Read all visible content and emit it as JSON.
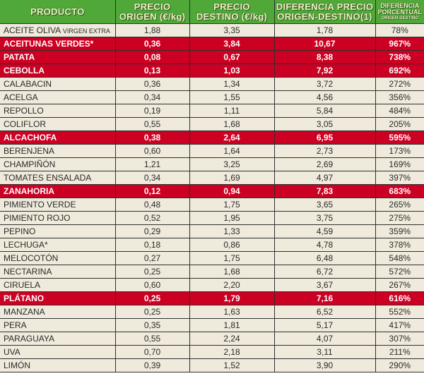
{
  "table": {
    "headers": {
      "producto": "PRODUCTO",
      "precio_origen": [
        "PRECIO",
        "ORIGEN (€/kg)"
      ],
      "precio_destino": [
        "PRECIO",
        "DESTINO (€/kg)"
      ],
      "diferencia": [
        "DIFERENCIA PRECIO",
        "ORIGEN-DESTINO(1)"
      ],
      "porcentual": [
        "DIFERENCIA",
        "PORCENTUAL",
        "ORIGEN-DESTINO"
      ]
    },
    "colors": {
      "header_bg": "#4fa838",
      "header_text": "#f4f0c8",
      "row_bg": "#efeadb",
      "highlight_bg": "#cc0022",
      "highlight_text": "#ffffff"
    },
    "rows": [
      {
        "producto": "ACEITE OLIVA",
        "sub": "VIRGEN EXTRA",
        "origen": "1,88",
        "destino": "3,35",
        "diferencia": "1,78",
        "porcentaje": "78%",
        "highlight": false
      },
      {
        "producto": "ACEITUNAS VERDES*",
        "sub": "",
        "origen": "0,36",
        "destino": "3,84",
        "diferencia": "10,67",
        "porcentaje": "967%",
        "highlight": true
      },
      {
        "producto": "PATATA",
        "sub": "",
        "origen": "0,08",
        "destino": "0,67",
        "diferencia": "8,38",
        "porcentaje": "738%",
        "highlight": true
      },
      {
        "producto": "CEBOLLA",
        "sub": "",
        "origen": "0,13",
        "destino": "1,03",
        "diferencia": "7,92",
        "porcentaje": "692%",
        "highlight": true
      },
      {
        "producto": "CALABACIN",
        "sub": "",
        "origen": "0,36",
        "destino": "1,34",
        "diferencia": "3,72",
        "porcentaje": "272%",
        "highlight": false
      },
      {
        "producto": "ACELGA",
        "sub": "",
        "origen": "0,34",
        "destino": "1,55",
        "diferencia": "4,56",
        "porcentaje": "356%",
        "highlight": false
      },
      {
        "producto": "REPOLLO",
        "sub": "",
        "origen": "0,19",
        "destino": "1,11",
        "diferencia": "5,84",
        "porcentaje": "484%",
        "highlight": false
      },
      {
        "producto": "COLIFLOR",
        "sub": "",
        "origen": "0,55",
        "destino": "1,68",
        "diferencia": "3,05",
        "porcentaje": "205%",
        "highlight": false
      },
      {
        "producto": "ALCACHOFA",
        "sub": "",
        "origen": "0,38",
        "destino": "2,64",
        "diferencia": "6,95",
        "porcentaje": "595%",
        "highlight": true
      },
      {
        "producto": "BERENJENA",
        "sub": "",
        "origen": "0,60",
        "destino": "1,64",
        "diferencia": "2,73",
        "porcentaje": "173%",
        "highlight": false
      },
      {
        "producto": "CHAMPIÑÓN",
        "sub": "",
        "origen": "1,21",
        "destino": "3,25",
        "diferencia": "2,69",
        "porcentaje": "169%",
        "highlight": false
      },
      {
        "producto": "TOMATES ENSALADA",
        "sub": "",
        "origen": "0,34",
        "destino": "1,69",
        "diferencia": "4,97",
        "porcentaje": "397%",
        "highlight": false
      },
      {
        "producto": "ZANAHORIA",
        "sub": "",
        "origen": "0,12",
        "destino": "0,94",
        "diferencia": "7,83",
        "porcentaje": "683%",
        "highlight": true
      },
      {
        "producto": "PIMIENTO VERDE",
        "sub": "",
        "origen": "0,48",
        "destino": "1,75",
        "diferencia": "3,65",
        "porcentaje": "265%",
        "highlight": false
      },
      {
        "producto": "PIMIENTO ROJO",
        "sub": "",
        "origen": "0,52",
        "destino": "1,95",
        "diferencia": "3,75",
        "porcentaje": "275%",
        "highlight": false
      },
      {
        "producto": "PEPINO",
        "sub": "",
        "origen": "0,29",
        "destino": "1,33",
        "diferencia": "4,59",
        "porcentaje": "359%",
        "highlight": false
      },
      {
        "producto": "LECHUGA*",
        "sub": "",
        "origen": "0,18",
        "destino": "0,86",
        "diferencia": "4,78",
        "porcentaje": "378%",
        "highlight": false
      },
      {
        "producto": "MELOCOTÓN",
        "sub": "",
        "origen": "0,27",
        "destino": "1,75",
        "diferencia": "6,48",
        "porcentaje": "548%",
        "highlight": false
      },
      {
        "producto": "NECTARINA",
        "sub": "",
        "origen": "0,25",
        "destino": "1,68",
        "diferencia": "6,72",
        "porcentaje": "572%",
        "highlight": false
      },
      {
        "producto": "CIRUELA",
        "sub": "",
        "origen": "0,60",
        "destino": "2,20",
        "diferencia": "3,67",
        "porcentaje": "267%",
        "highlight": false
      },
      {
        "producto": "PLÁTANO",
        "sub": "",
        "origen": "0,25",
        "destino": "1,79",
        "diferencia": "7,16",
        "porcentaje": "616%",
        "highlight": true
      },
      {
        "producto": "MANZANA",
        "sub": "",
        "origen": "0,25",
        "destino": "1,63",
        "diferencia": "6,52",
        "porcentaje": "552%",
        "highlight": false
      },
      {
        "producto": "PERA",
        "sub": "",
        "origen": "0,35",
        "destino": "1,81",
        "diferencia": "5,17",
        "porcentaje": "417%",
        "highlight": false
      },
      {
        "producto": "PARAGUAYA",
        "sub": "",
        "origen": "0,55",
        "destino": "2,24",
        "diferencia": "4,07",
        "porcentaje": "307%",
        "highlight": false
      },
      {
        "producto": "UVA",
        "sub": "",
        "origen": "0,70",
        "destino": "2,18",
        "diferencia": "3,11",
        "porcentaje": "211%",
        "highlight": false
      },
      {
        "producto": "LIMÓN",
        "sub": "",
        "origen": "0,39",
        "destino": "1,52",
        "diferencia": "3,90",
        "porcentaje": "290%",
        "highlight": false
      }
    ]
  }
}
